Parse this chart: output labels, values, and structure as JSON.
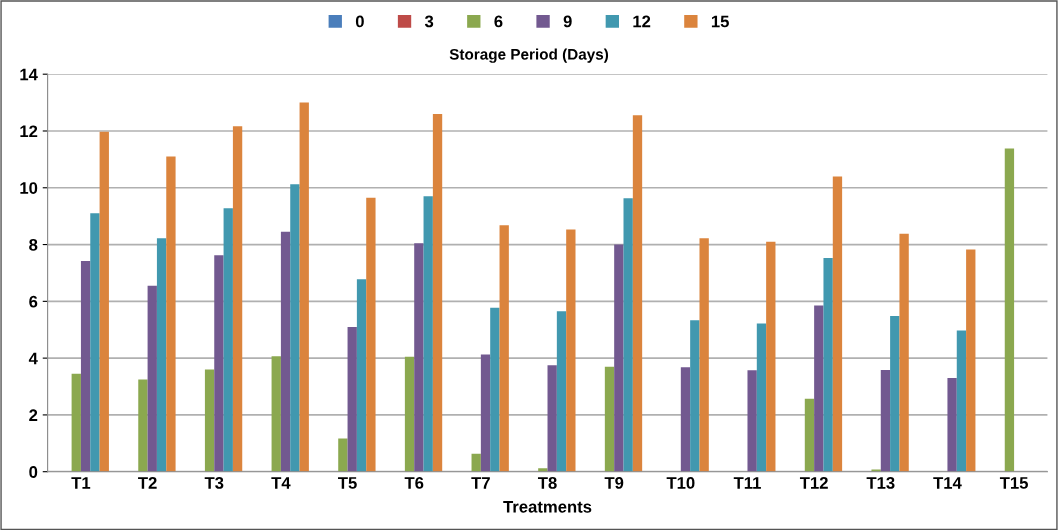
{
  "chart_data": {
    "type": "bar",
    "categories": [
      "T1",
      "T2",
      "T3",
      "T4",
      "T5",
      "T6",
      "T7",
      "T8",
      "T9",
      "T10",
      "T11",
      "T12",
      "T13",
      "T14",
      "T15"
    ],
    "series": [
      {
        "name": "0",
        "color": "#4a7ebb",
        "values": [
          null,
          null,
          null,
          null,
          null,
          null,
          null,
          null,
          null,
          null,
          null,
          null,
          null,
          null,
          null
        ]
      },
      {
        "name": "3",
        "color": "#be4b48",
        "values": [
          null,
          null,
          null,
          null,
          null,
          null,
          null,
          null,
          null,
          null,
          null,
          null,
          null,
          null,
          null
        ]
      },
      {
        "name": "6",
        "color": "#8ba84f",
        "values": [
          3.45,
          3.25,
          3.6,
          4.07,
          1.17,
          4.05,
          0.63,
          0.12,
          3.7,
          null,
          null,
          2.57,
          0.08,
          null,
          11.38
        ]
      },
      {
        "name": "9",
        "color": "#725990",
        "values": [
          7.42,
          6.55,
          7.62,
          8.45,
          5.1,
          8.05,
          4.13,
          3.75,
          8.0,
          3.68,
          3.57,
          5.85,
          3.58,
          3.3,
          null
        ]
      },
      {
        "name": "12",
        "color": "#4198af",
        "values": [
          9.1,
          8.22,
          9.28,
          10.12,
          6.78,
          9.7,
          5.77,
          5.65,
          9.63,
          5.33,
          5.22,
          7.53,
          5.48,
          4.97,
          null
        ]
      },
      {
        "name": "15",
        "color": "#db843d",
        "values": [
          11.97,
          11.1,
          12.17,
          13.0,
          9.65,
          12.6,
          8.68,
          8.53,
          12.55,
          8.22,
          8.1,
          10.4,
          8.38,
          7.83,
          null
        ]
      }
    ],
    "legend_title": "Storage Period (Days)",
    "xlabel": "Treatments",
    "ylim": [
      0,
      14
    ],
    "yticks": [
      0,
      2,
      4,
      6,
      8,
      10,
      12,
      14
    ],
    "grid": "y",
    "legend": "top"
  }
}
